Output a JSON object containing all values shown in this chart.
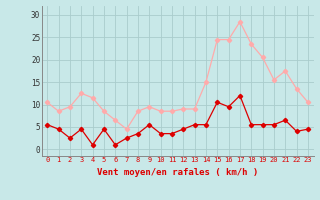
{
  "hours": [
    0,
    1,
    2,
    3,
    4,
    5,
    6,
    7,
    8,
    9,
    10,
    11,
    12,
    13,
    14,
    15,
    16,
    17,
    18,
    19,
    20,
    21,
    22,
    23
  ],
  "wind_avg": [
    5.5,
    4.5,
    2.5,
    4.5,
    1.0,
    4.5,
    1.0,
    2.5,
    3.5,
    5.5,
    3.5,
    3.5,
    4.5,
    5.5,
    5.5,
    10.5,
    9.5,
    12.0,
    5.5,
    5.5,
    5.5,
    6.5,
    4.0,
    4.5
  ],
  "wind_gust": [
    10.5,
    8.5,
    9.5,
    12.5,
    11.5,
    8.5,
    6.5,
    4.5,
    8.5,
    9.5,
    8.5,
    8.5,
    9.0,
    9.0,
    15.0,
    24.5,
    24.5,
    28.5,
    23.5,
    20.5,
    15.5,
    17.5,
    13.5,
    10.5
  ],
  "avg_color": "#dd0000",
  "gust_color": "#ffaaaa",
  "bg_color": "#c8e8e8",
  "grid_color": "#aacccc",
  "xlabel": "Vent moyen/en rafales ( km/h )",
  "xlabel_color": "#dd0000",
  "yticks": [
    0,
    5,
    10,
    15,
    20,
    25,
    30
  ],
  "ylim": [
    -1.5,
    32
  ],
  "xlim": [
    -0.5,
    23.5
  ]
}
